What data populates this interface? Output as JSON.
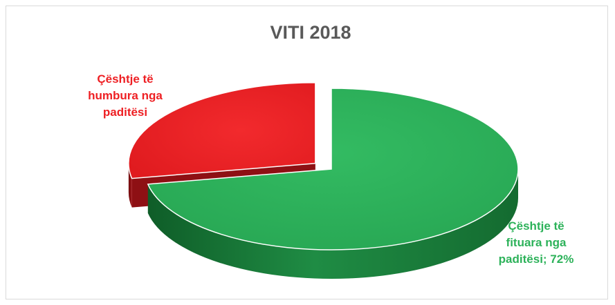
{
  "chart_data": {
    "type": "pie",
    "title": "VITI 2018",
    "categories": [
      "Çështje të fituara nga paditësi",
      "Çështje të humbura nga paditësi"
    ],
    "values": [
      72,
      28
    ],
    "label_lines": [
      [
        "Çështje të",
        "fituara nga",
        "paditësi; 72%"
      ],
      [
        "Çështje të",
        "humbura nga",
        "paditësi"
      ]
    ],
    "colors": [
      "#2db25a",
      "#ee2024"
    ],
    "side_colors": [
      "#1a7a37",
      "#8e1014"
    ],
    "exploded": [
      false,
      true
    ],
    "label_placement": [
      "bottom-right",
      "top-left"
    ]
  }
}
